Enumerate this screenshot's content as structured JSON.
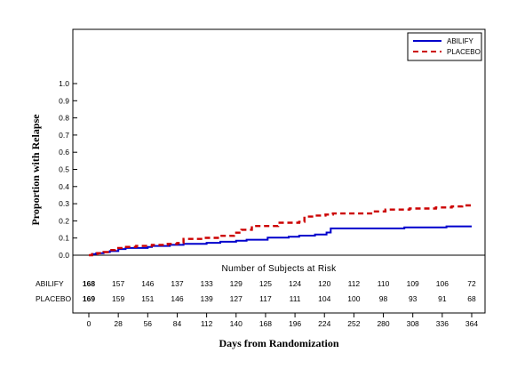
{
  "chart_data": {
    "type": "line",
    "step": true,
    "title": "",
    "xlabel": "Days from Randomization",
    "ylabel": "Proportion with Relapse",
    "xlim": [
      0,
      364
    ],
    "ylim": [
      0,
      1.0
    ],
    "x_ticks": [
      "0",
      "28",
      "56",
      "84",
      "112",
      "140",
      "168",
      "196",
      "224",
      "252",
      "280",
      "308",
      "336",
      "364"
    ],
    "y_ticks": [
      "0.0",
      "0.1",
      "0.2",
      "0.3",
      "0.4",
      "0.5",
      "0.6",
      "0.7",
      "0.8",
      "0.9",
      "1.0"
    ],
    "grid": false,
    "legend_position": "top-right",
    "series": [
      {
        "name": "ABILIFY",
        "color": "#0000cc",
        "style": "solid",
        "points": [
          [
            0,
            0.0
          ],
          [
            3,
            0.006
          ],
          [
            7,
            0.012
          ],
          [
            14,
            0.018
          ],
          [
            20,
            0.024
          ],
          [
            28,
            0.036
          ],
          [
            35,
            0.042
          ],
          [
            56,
            0.048
          ],
          [
            60,
            0.054
          ],
          [
            77,
            0.06
          ],
          [
            84,
            0.06
          ],
          [
            90,
            0.066
          ],
          [
            112,
            0.072
          ],
          [
            125,
            0.078
          ],
          [
            140,
            0.084
          ],
          [
            150,
            0.09
          ],
          [
            170,
            0.102
          ],
          [
            190,
            0.108
          ],
          [
            200,
            0.114
          ],
          [
            215,
            0.12
          ],
          [
            226,
            0.132
          ],
          [
            230,
            0.156
          ],
          [
            252,
            0.156
          ],
          [
            300,
            0.162
          ],
          [
            340,
            0.168
          ],
          [
            364,
            0.168
          ]
        ]
      },
      {
        "name": "PLACEBO",
        "color": "#cc0000",
        "style": "dashed",
        "points": [
          [
            0,
            0.0
          ],
          [
            3,
            0.006
          ],
          [
            8,
            0.012
          ],
          [
            14,
            0.018
          ],
          [
            20,
            0.03
          ],
          [
            25,
            0.042
          ],
          [
            32,
            0.048
          ],
          [
            45,
            0.054
          ],
          [
            60,
            0.06
          ],
          [
            75,
            0.066
          ],
          [
            84,
            0.071
          ],
          [
            90,
            0.095
          ],
          [
            110,
            0.101
          ],
          [
            125,
            0.113
          ],
          [
            138,
            0.131
          ],
          [
            145,
            0.148
          ],
          [
            155,
            0.17
          ],
          [
            175,
            0.17
          ],
          [
            180,
            0.189
          ],
          [
            200,
            0.195
          ],
          [
            205,
            0.225
          ],
          [
            215,
            0.231
          ],
          [
            225,
            0.237
          ],
          [
            232,
            0.243
          ],
          [
            260,
            0.243
          ],
          [
            270,
            0.255
          ],
          [
            282,
            0.266
          ],
          [
            305,
            0.272
          ],
          [
            330,
            0.278
          ],
          [
            345,
            0.284
          ],
          [
            355,
            0.29
          ],
          [
            364,
            0.29
          ]
        ]
      }
    ],
    "risk_table": {
      "title": "Number of Subjects at Risk",
      "rows": [
        {
          "label": "ABILIFY",
          "values": [
            "168",
            "157",
            "146",
            "137",
            "133",
            "129",
            "125",
            "124",
            "120",
            "112",
            "110",
            "109",
            "106",
            "72"
          ]
        },
        {
          "label": "PLACEBO",
          "values": [
            "169",
            "159",
            "151",
            "146",
            "139",
            "127",
            "117",
            "111",
            "104",
            "100",
            "98",
            "93",
            "91",
            "68"
          ]
        }
      ]
    }
  }
}
